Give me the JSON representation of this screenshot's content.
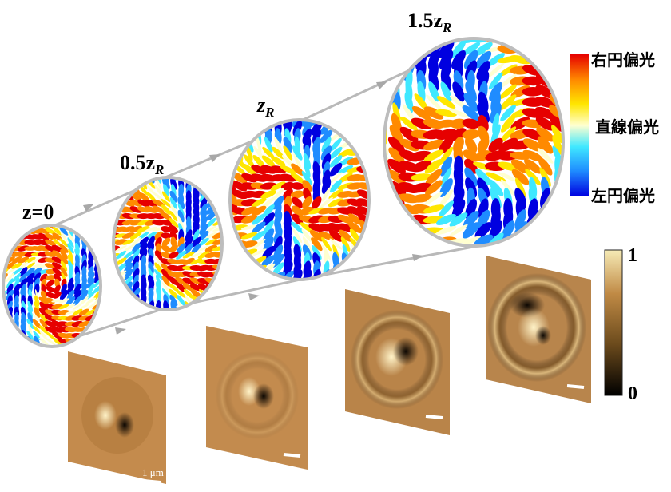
{
  "stages": [
    {
      "main": "z=0",
      "sub": ""
    },
    {
      "main": "0.5z",
      "sub": "R"
    },
    {
      "main": "z",
      "sub": "R"
    },
    {
      "main": "1.5z",
      "sub": "R"
    }
  ],
  "polarization_colorbar": {
    "top_label": "右円偏光",
    "middle_label": "直線偏光",
    "bottom_label": "左円偏光",
    "colors": [
      "#e60000",
      "#ff8a00",
      "#ffe600",
      "#ffffd0",
      "#40e8ff",
      "#1f8cff",
      "#0000e0"
    ]
  },
  "intensity_colorbar": {
    "max_label": "1",
    "min_label": "0",
    "colors": [
      "#000000",
      "#6b4a1c",
      "#c08a45",
      "#f6ebb6"
    ]
  },
  "scale_bar_label": "1 μm",
  "accent_colors": {
    "path_gray": "#b9b9b9",
    "ring_gray": "#bdbdbd"
  }
}
